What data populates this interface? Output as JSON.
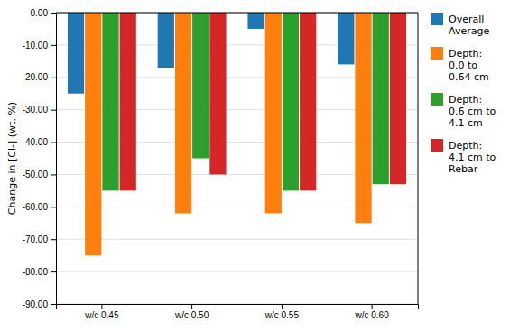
{
  "chart_data": {
    "type": "bar",
    "categories": [
      "w/c 0.45",
      "w/c 0.50",
      "w/c 0.55",
      "w/c 0.60"
    ],
    "series": [
      {
        "name": "Overall\nAverage",
        "values": [
          -25.0,
          -17.0,
          -5.0,
          -16.0
        ]
      },
      {
        "name": "Depth:\n0.0 to\n0.64 cm",
        "values": [
          -75.0,
          -62.0,
          -62.0,
          -65.0
        ]
      },
      {
        "name": "Depth:\n0.6 cm to\n4.1 cm",
        "values": [
          -55.0,
          -45.0,
          -55.0,
          -53.0
        ]
      },
      {
        "name": "Depth:\n4.1 cm to\nRebar",
        "values": [
          -55.0,
          -50.0,
          -55.0,
          -53.0
        ]
      }
    ],
    "ylabel": "Change in [Cl-] (wt. %)",
    "ylim": [
      -90,
      0
    ],
    "yticks": [
      {
        "value": 0,
        "label": "0.00"
      },
      {
        "value": -10,
        "label": "-10.00"
      },
      {
        "value": -20,
        "label": "-20.00"
      },
      {
        "value": -30,
        "label": "-30.00"
      },
      {
        "value": -40,
        "label": "-40.00"
      },
      {
        "value": -50,
        "label": "-50.00"
      },
      {
        "value": -60,
        "label": "-60.00"
      },
      {
        "value": -70,
        "label": "-70.00"
      },
      {
        "value": -80,
        "label": "-80.00"
      },
      {
        "value": -90,
        "label": "-90.00"
      }
    ],
    "grid": true,
    "legend": "right"
  }
}
